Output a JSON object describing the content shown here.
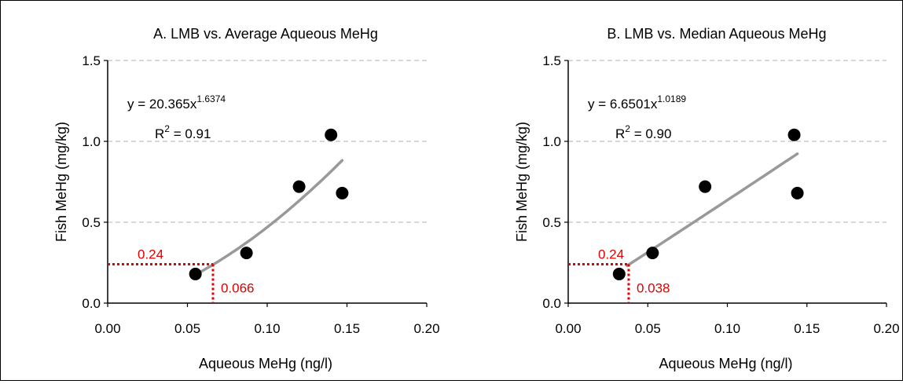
{
  "chart_data": [
    {
      "type": "scatter",
      "title": "A. LMB vs. Average Aqueous MeHg",
      "xlabel": "Aqueous MeHg (ng/l)",
      "ylabel": "Fish MeHg (mg/kg)",
      "xlim": [
        0,
        0.2
      ],
      "ylim": [
        0,
        1.5
      ],
      "x_ticks": [
        "0.00",
        "0.05",
        "0.10",
        "0.15",
        "0.20"
      ],
      "y_ticks": [
        "0.0",
        "0.5",
        "1.0",
        "1.5"
      ],
      "x_tick_values": [
        0,
        0.05,
        0.1,
        0.15,
        0.2
      ],
      "y_tick_values": [
        0,
        0.5,
        1.0,
        1.5
      ],
      "grid": "horizontal dashed",
      "colors": {
        "points": "#000000",
        "trend": "#999999",
        "reference": "#e00000"
      },
      "points": [
        {
          "x": 0.055,
          "y": 0.18
        },
        {
          "x": 0.087,
          "y": 0.31
        },
        {
          "x": 0.12,
          "y": 0.72
        },
        {
          "x": 0.14,
          "y": 1.04
        },
        {
          "x": 0.147,
          "y": 0.68
        }
      ],
      "trendline": {
        "type": "power",
        "a": 20.365,
        "b": 1.6374,
        "x_range": [
          0.055,
          0.147
        ]
      },
      "equation": {
        "prefix": "y = 20.365x",
        "exponent": "1.6374"
      },
      "r2": {
        "prefix": "R",
        "sup": "2",
        "value": " = 0.91"
      },
      "reference": {
        "x": 0.066,
        "y": 0.24,
        "x_label": "0.066",
        "y_label": "0.24"
      }
    },
    {
      "type": "scatter",
      "title": "B. LMB vs. Median Aqueous MeHg",
      "xlabel": "Aqueous MeHg (ng/l)",
      "ylabel": "Fish MeHg (mg/kg)",
      "xlim": [
        0,
        0.2
      ],
      "ylim": [
        0,
        1.5
      ],
      "x_ticks": [
        "0.00",
        "0.05",
        "0.10",
        "0.15",
        "0.20"
      ],
      "y_ticks": [
        "0.0",
        "0.5",
        "1.0",
        "1.5"
      ],
      "x_tick_values": [
        0,
        0.05,
        0.1,
        0.15,
        0.2
      ],
      "y_tick_values": [
        0,
        0.5,
        1.0,
        1.5
      ],
      "grid": "horizontal dashed",
      "colors": {
        "points": "#000000",
        "trend": "#999999",
        "reference": "#e00000"
      },
      "points": [
        {
          "x": 0.032,
          "y": 0.18
        },
        {
          "x": 0.053,
          "y": 0.31
        },
        {
          "x": 0.086,
          "y": 0.72
        },
        {
          "x": 0.142,
          "y": 1.04
        },
        {
          "x": 0.144,
          "y": 0.68
        }
      ],
      "trendline": {
        "type": "power",
        "a": 6.6501,
        "b": 1.0189,
        "x_range": [
          0.037,
          0.144
        ]
      },
      "equation": {
        "prefix": "y = 6.6501x",
        "exponent": "1.0189"
      },
      "r2": {
        "prefix": "R",
        "sup": "2",
        "value": " = 0.90"
      },
      "reference": {
        "x": 0.038,
        "y": 0.24,
        "x_label": "0.038",
        "y_label": "0.24"
      }
    }
  ]
}
